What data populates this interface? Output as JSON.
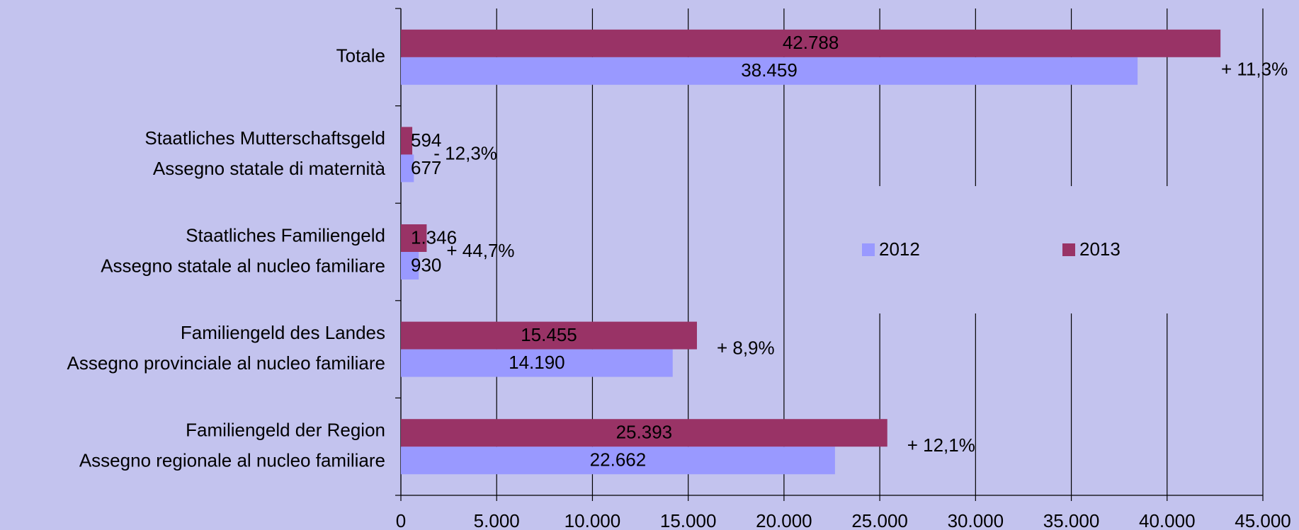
{
  "chart_data": {
    "type": "hbar",
    "categories": [
      [
        "Totale"
      ],
      [
        "Staatliches Mutterschaftsgeld",
        "Assegno statale di maternità"
      ],
      [
        "Staatliches Familiengeld",
        "Assegno statale al nucleo familiare"
      ],
      [
        "Familiengeld des Landes",
        "Assegno provinciale al nucleo familiare"
      ],
      [
        "Familiengeld der Region",
        "Assegno regionale al nucleo familiare"
      ]
    ],
    "series": [
      {
        "name": "2012",
        "color": "#9999ff",
        "values": [
          38459,
          677,
          930,
          14190,
          22662
        ],
        "value_labels": [
          "38.459",
          "677",
          "930",
          "14.190",
          "22.662"
        ]
      },
      {
        "name": "2013",
        "color": "#993366",
        "values": [
          42788,
          594,
          1346,
          15455,
          25393
        ],
        "value_labels": [
          "42.788",
          "594",
          "1.346",
          "15.455",
          "25.393"
        ]
      }
    ],
    "annotations": [
      {
        "text": "+ 11,3%",
        "color": "#000000"
      },
      {
        "text": "- 12,3%",
        "color": "#ff0000"
      },
      {
        "text": "+ 44,7%",
        "color": "#000000"
      },
      {
        "text": "+ 8,9%",
        "color": "#000000"
      },
      {
        "text": "+ 12,1%",
        "color": "#000000"
      }
    ],
    "xlim": [
      0,
      45000
    ],
    "xticks": [
      0,
      {
        "value": 5000,
        "label": "5.000"
      },
      {
        "value": 10000,
        "label": "10.000"
      },
      {
        "value": 15000,
        "label": "15.000"
      },
      {
        "value": 20000,
        "label": "20.000"
      },
      {
        "value": 25000,
        "label": "25.000"
      },
      {
        "value": 30000,
        "label": "30.000"
      },
      {
        "value": 35000,
        "label": "35.000"
      },
      {
        "value": 40000,
        "label": "40.000"
      },
      {
        "value": 45000,
        "label": "45.000"
      }
    ],
    "grid": true,
    "legend": "right"
  }
}
